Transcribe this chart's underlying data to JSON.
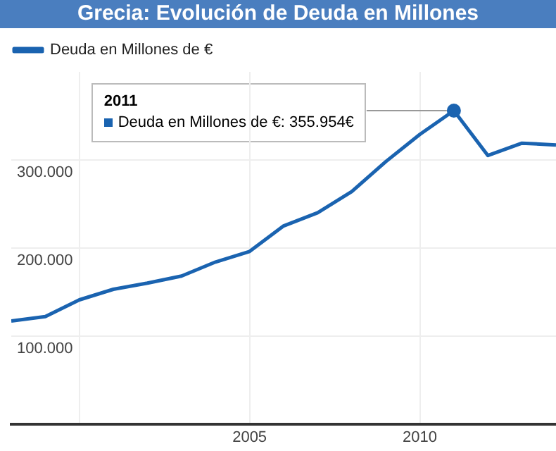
{
  "chart_data": {
    "type": "line",
    "title": "Grecia: Evolución de Deuda en Millones",
    "x": [
      1998,
      1999,
      2000,
      2001,
      2002,
      2003,
      2004,
      2005,
      2006,
      2007,
      2008,
      2009,
      2010,
      2011,
      2012,
      2013,
      2014
    ],
    "series": [
      {
        "name": "Deuda en Millones de €",
        "color": "#1a63b0",
        "values": [
          117000,
          122000,
          141000,
          153000,
          160000,
          168000,
          184000,
          196000,
          225000,
          240000,
          264000,
          298000,
          329000,
          355954,
          305000,
          319000,
          317000
        ]
      }
    ],
    "xlim": [
      1998,
      2014
    ],
    "xticks": [
      {
        "value": 2000,
        "label": null
      },
      2005,
      2010
    ],
    "ylim": [
      0,
      400000
    ],
    "yticks": [
      {
        "value": 100000,
        "label": "100.000"
      },
      {
        "value": 200000,
        "label": "200.000"
      },
      {
        "value": 300000,
        "label": "300.000"
      }
    ],
    "grid": true,
    "legend": "top left",
    "marker": "none",
    "line_style": "solid",
    "annotations": [
      {
        "text": "2011\nDeuda en Millones de €: 355.954€",
        "x": 2011,
        "y": 355954
      }
    ]
  }
}
